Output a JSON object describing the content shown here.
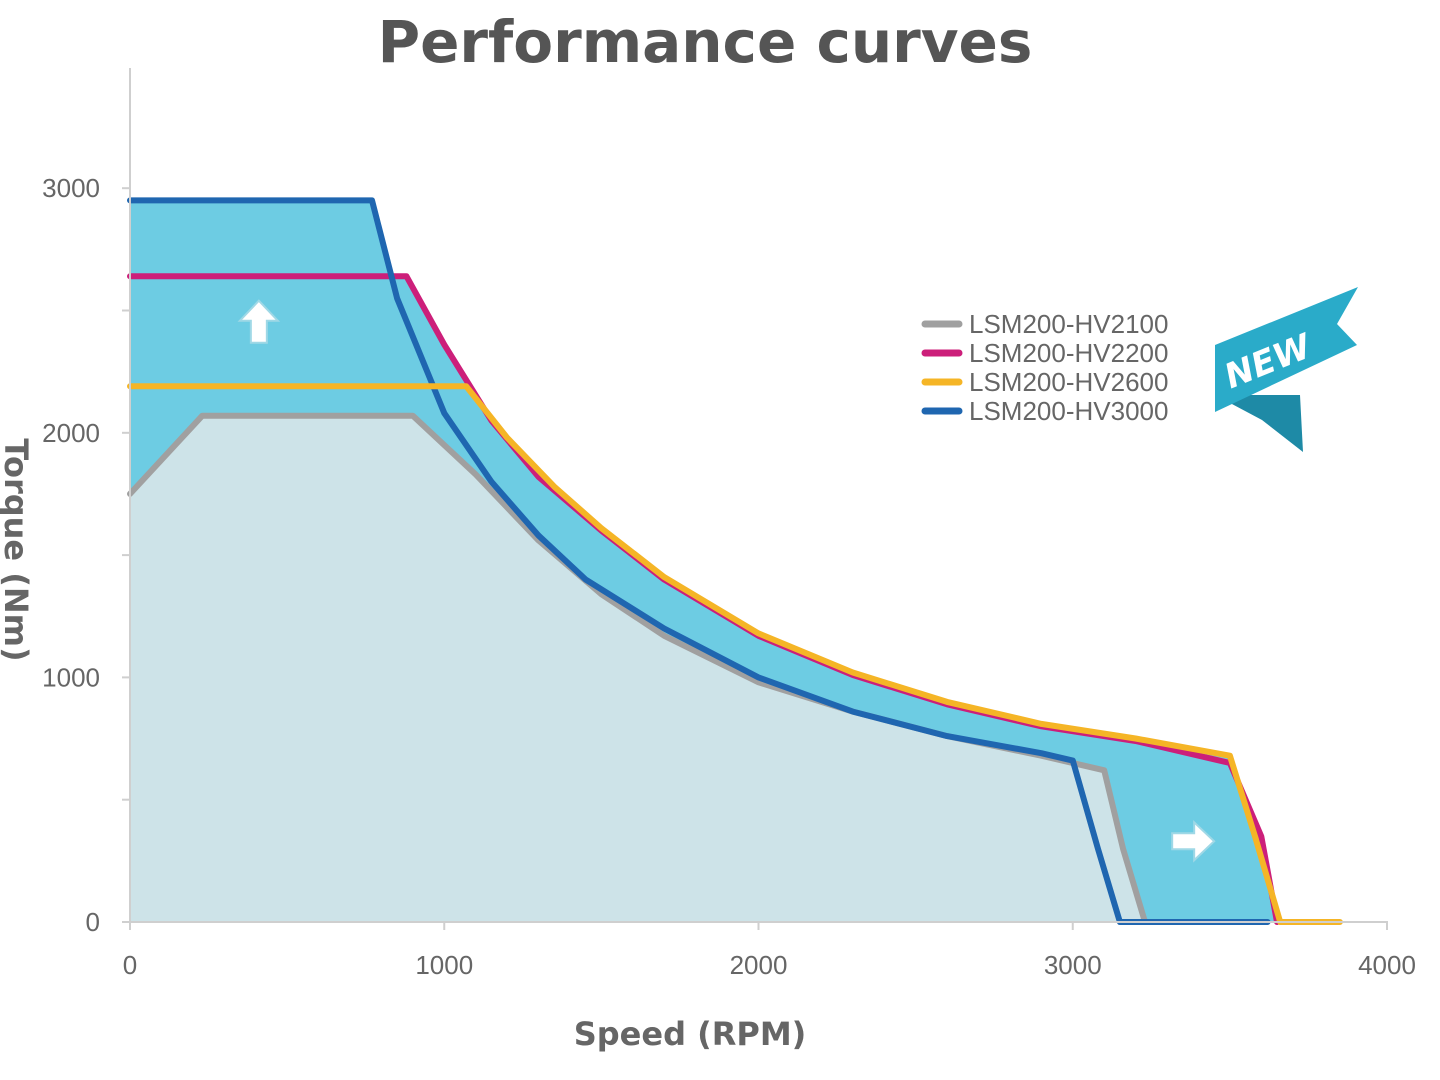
{
  "chart_data": {
    "type": "line",
    "title": "Performance curves",
    "xlabel": "Speed (RPM)",
    "ylabel": "Torque (Nm)",
    "xlim": [
      0,
      4000
    ],
    "ylim": [
      0,
      3500
    ],
    "x_ticks": [
      0,
      1000,
      2000,
      3000,
      4000
    ],
    "x_tick_labels": [
      "0",
      "1000",
      "2000",
      "3000",
      "4000"
    ],
    "y_ticks": [
      0,
      1000,
      2000,
      3000
    ],
    "y_tick_labels": [
      "0",
      "1000",
      "2000",
      "3000"
    ],
    "y_minor_ticks": [
      500,
      1500,
      2500
    ],
    "grid": false,
    "legend_position": "right",
    "series": [
      {
        "name": "LSM200-HV2100",
        "color": "#a0a0a0",
        "points": [
          [
            0,
            1750
          ],
          [
            230,
            2070
          ],
          [
            900,
            2070
          ],
          [
            1100,
            1830
          ],
          [
            1300,
            1560
          ],
          [
            1500,
            1340
          ],
          [
            1700,
            1170
          ],
          [
            2000,
            980
          ],
          [
            2300,
            860
          ],
          [
            2600,
            760
          ],
          [
            2900,
            680
          ],
          [
            3100,
            620
          ],
          [
            3160,
            300
          ],
          [
            3230,
            0
          ]
        ]
      },
      {
        "name": "LSM200-HV2200",
        "color": "#cc1f7a",
        "points": [
          [
            0,
            2640
          ],
          [
            880,
            2640
          ],
          [
            1000,
            2360
          ],
          [
            1150,
            2050
          ],
          [
            1300,
            1820
          ],
          [
            1500,
            1600
          ],
          [
            1700,
            1400
          ],
          [
            2000,
            1170
          ],
          [
            2300,
            1010
          ],
          [
            2600,
            890
          ],
          [
            2900,
            800
          ],
          [
            3200,
            740
          ],
          [
            3500,
            650
          ],
          [
            3600,
            350
          ],
          [
            3650,
            0
          ]
        ]
      },
      {
        "name": "LSM200-HV2600",
        "color": "#f5b526",
        "points": [
          [
            0,
            2190
          ],
          [
            1070,
            2190
          ],
          [
            1200,
            1980
          ],
          [
            1350,
            1780
          ],
          [
            1500,
            1610
          ],
          [
            1700,
            1410
          ],
          [
            2000,
            1180
          ],
          [
            2300,
            1020
          ],
          [
            2600,
            900
          ],
          [
            2900,
            810
          ],
          [
            3200,
            750
          ],
          [
            3500,
            680
          ],
          [
            3580,
            350
          ],
          [
            3660,
            0
          ],
          [
            3850,
            0
          ]
        ]
      },
      {
        "name": "LSM200-HV3000",
        "color": "#1f66b0",
        "points": [
          [
            0,
            2950
          ],
          [
            770,
            2950
          ],
          [
            850,
            2550
          ],
          [
            1000,
            2080
          ],
          [
            1150,
            1800
          ],
          [
            1300,
            1580
          ],
          [
            1450,
            1400
          ],
          [
            1700,
            1200
          ],
          [
            2000,
            1000
          ],
          [
            2300,
            860
          ],
          [
            2600,
            760
          ],
          [
            2900,
            690
          ],
          [
            3000,
            660
          ],
          [
            3080,
            300
          ],
          [
            3150,
            0
          ],
          [
            3620,
            0
          ]
        ]
      }
    ],
    "fill_regions": [
      {
        "name": "baseline-area",
        "color": "#cde3e8",
        "boundary_series": "LSM200-HV2100"
      },
      {
        "name": "upgrade-area",
        "color": "#6dcce3"
      }
    ],
    "annotations": {
      "badge": "NEW",
      "badge_color": "#2aabc9",
      "badge_shadow_color": "#1e8aa6",
      "arrow_up_at": [
        410,
        2450
      ],
      "arrow_right_at": [
        3380,
        330
      ]
    }
  }
}
